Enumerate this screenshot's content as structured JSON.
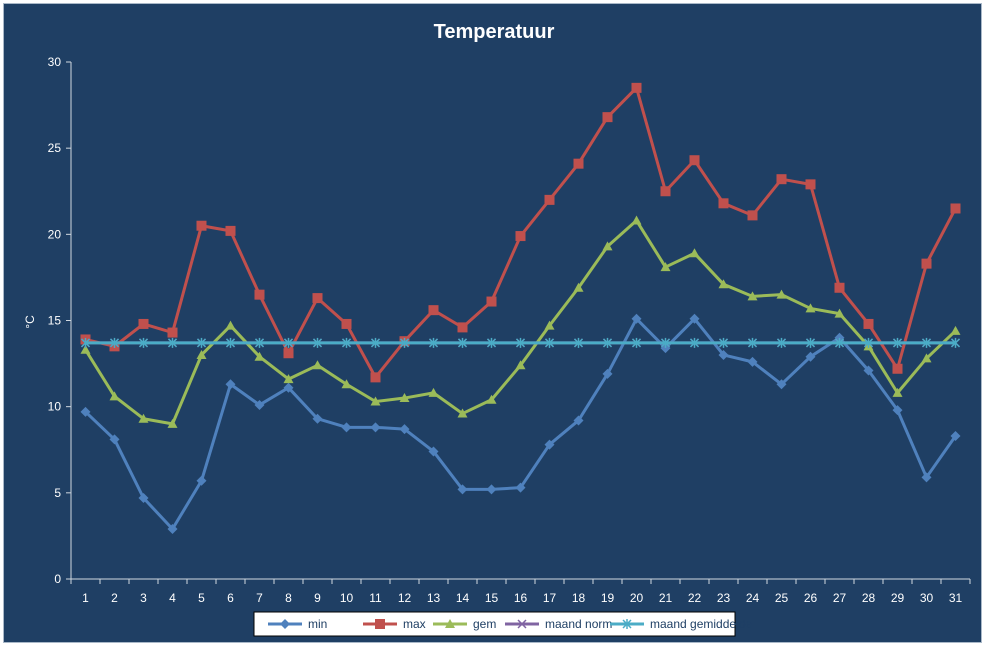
{
  "chart_data": {
    "type": "line",
    "title": "Temperatuur",
    "ylabel": "°C",
    "xlabel": "",
    "ylim": [
      0,
      30
    ],
    "yticks": [
      0,
      5,
      10,
      15,
      20,
      25,
      30
    ],
    "x": [
      "1",
      "2",
      "3",
      "4",
      "5",
      "6",
      "7",
      "8",
      "9",
      "10",
      "11",
      "12",
      "13",
      "14",
      "15",
      "16",
      "17",
      "18",
      "19",
      "20",
      "21",
      "22",
      "23",
      "24",
      "25",
      "26",
      "27",
      "28",
      "29",
      "30",
      "31"
    ],
    "legend_position": "bottom",
    "series": [
      {
        "name": "min",
        "color": "#4f81bd",
        "marker": "diamond",
        "values": [
          9.7,
          8.1,
          4.7,
          2.9,
          5.7,
          11.3,
          10.1,
          11.1,
          9.3,
          8.8,
          8.8,
          8.7,
          7.4,
          5.2,
          5.2,
          5.3,
          7.8,
          9.2,
          11.9,
          15.1,
          13.4,
          15.1,
          13.0,
          12.6,
          11.3,
          12.9,
          14.0,
          12.1,
          9.8,
          5.9,
          8.3
        ]
      },
      {
        "name": "max",
        "color": "#c0504d",
        "marker": "square",
        "values": [
          13.9,
          13.5,
          14.8,
          14.3,
          20.5,
          20.2,
          16.5,
          13.1,
          16.3,
          14.8,
          11.7,
          13.8,
          15.6,
          14.6,
          16.1,
          19.9,
          22.0,
          24.1,
          26.8,
          28.5,
          22.5,
          24.3,
          21.8,
          21.1,
          23.2,
          22.9,
          16.9,
          14.8,
          12.2,
          18.3,
          21.5
        ]
      },
      {
        "name": "gem",
        "color": "#9bbb59",
        "marker": "triangle",
        "values": [
          13.3,
          10.6,
          9.3,
          9.0,
          13.0,
          14.7,
          12.9,
          11.6,
          12.4,
          11.3,
          10.3,
          10.5,
          10.8,
          9.6,
          10.4,
          12.4,
          14.7,
          16.9,
          19.3,
          20.8,
          18.1,
          18.9,
          17.1,
          16.4,
          16.5,
          15.7,
          15.4,
          13.5,
          10.8,
          12.8,
          14.4
        ]
      },
      {
        "name": "maand norm",
        "color": "#8064a2",
        "marker": "x",
        "values": [
          13.7,
          13.7,
          13.7,
          13.7,
          13.7,
          13.7,
          13.7,
          13.7,
          13.7,
          13.7,
          13.7,
          13.7,
          13.7,
          13.7,
          13.7,
          13.7,
          13.7,
          13.7,
          13.7,
          13.7,
          13.7,
          13.7,
          13.7,
          13.7,
          13.7,
          13.7,
          13.7,
          13.7,
          13.7,
          13.7,
          13.7
        ]
      },
      {
        "name": "maand gemiddelde",
        "color": "#4bacc6",
        "marker": "star",
        "values": [
          13.7,
          13.7,
          13.7,
          13.7,
          13.7,
          13.7,
          13.7,
          13.7,
          13.7,
          13.7,
          13.7,
          13.7,
          13.7,
          13.7,
          13.7,
          13.7,
          13.7,
          13.7,
          13.7,
          13.7,
          13.7,
          13.7,
          13.7,
          13.7,
          13.7,
          13.7,
          13.7,
          13.7,
          13.7,
          13.7,
          13.7
        ]
      }
    ]
  }
}
